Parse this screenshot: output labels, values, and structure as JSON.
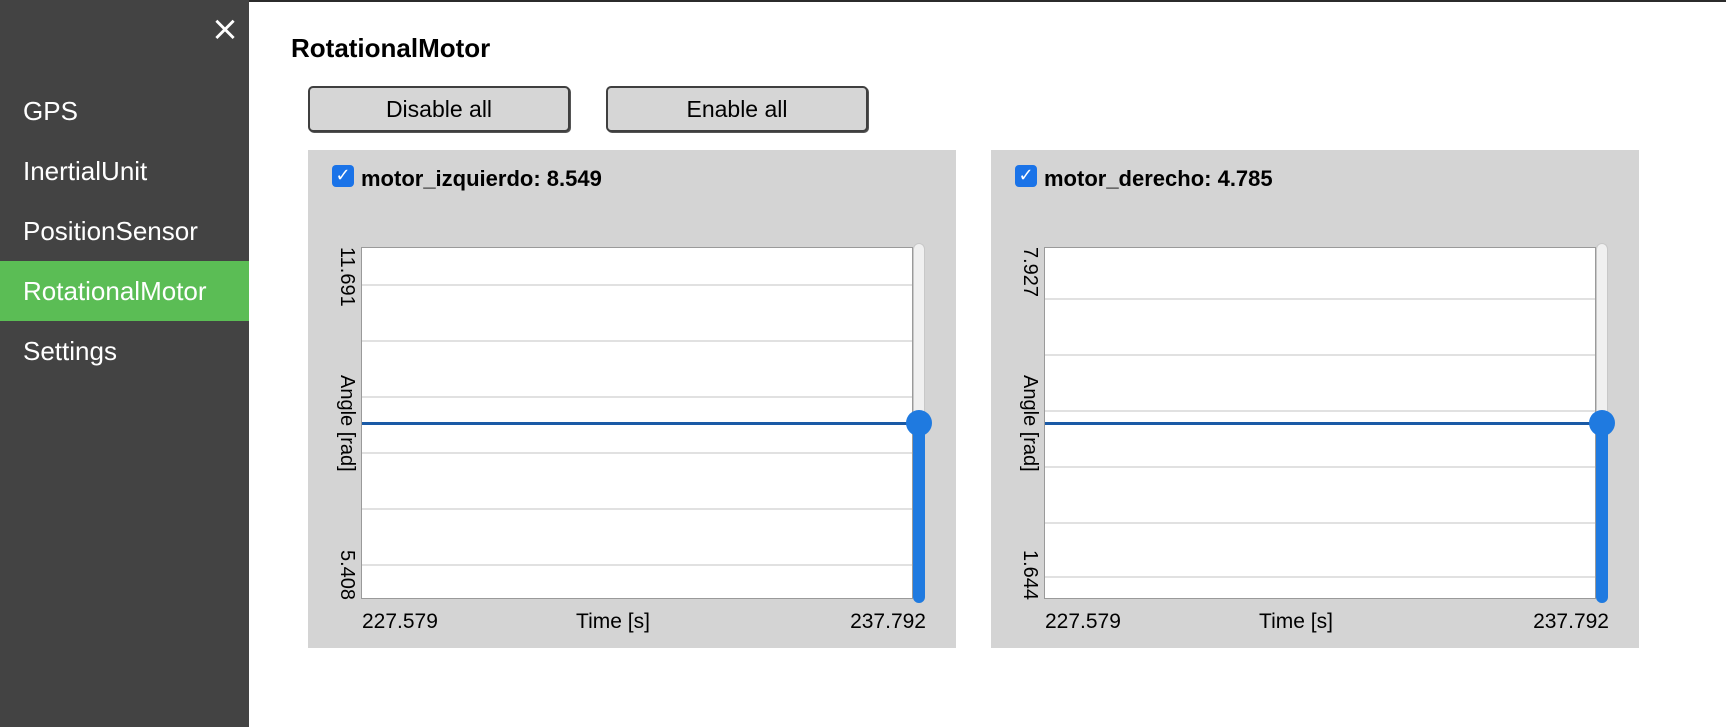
{
  "sidebar": {
    "close_icon": "×",
    "items": [
      {
        "label": "GPS"
      },
      {
        "label": "InertialUnit"
      },
      {
        "label": "PositionSensor"
      },
      {
        "label": "RotationalMotor",
        "active": true
      },
      {
        "label": "Settings"
      }
    ]
  },
  "main": {
    "title": "RotationalMotor",
    "disable_all_label": "Disable all",
    "enable_all_label": "Enable all"
  },
  "colors": {
    "sidebar_bg": "#434343",
    "active_item": "#5bbd55",
    "panel_bg": "#d4d4d4",
    "data_line": "#1a5aa6",
    "slider_accent": "#1f7ae0"
  },
  "motors": [
    {
      "label": "motor_izquierdo: 8.549",
      "checked": true,
      "check_icon": "✓",
      "y_max": "11.691",
      "y_min": "5.408",
      "y_label": "Angle [rad]",
      "x_min": "227.579",
      "x_max": "237.792",
      "x_label": "Time [s]",
      "slider_fraction": 0.5
    },
    {
      "label": "motor_derecho: 4.785",
      "checked": true,
      "check_icon": "✓",
      "y_max": "7.927",
      "y_min": "1.644",
      "y_label": "Angle [rad]",
      "x_min": "227.579",
      "x_max": "237.792",
      "x_label": "Time [s]",
      "slider_fraction": 0.5
    }
  ]
}
